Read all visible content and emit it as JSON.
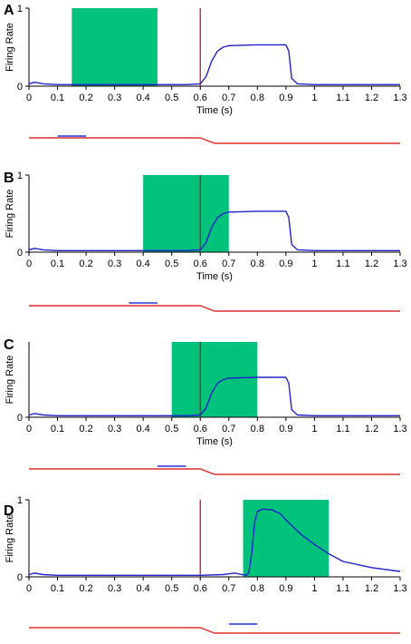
{
  "figure": {
    "colors": {
      "stimulus_window": "#00c27a",
      "response_curve": "#2222cc",
      "event_marker": "#b22222",
      "signal_trace": "#e03030",
      "bar_marker": "#2233dd",
      "axis": "#000000"
    }
  },
  "chart_data": [
    {
      "type": "line",
      "panel": "A",
      "xlabel": "Time (s)",
      "ylabel": "Firing Rate",
      "xlim": [
        0,
        1.3
      ],
      "ylim": [
        0,
        1
      ],
      "xticks": [
        "0",
        "0.1",
        "0.2",
        "0.3",
        "0.4",
        "0.5",
        "0.6",
        "0.7",
        "0.8",
        "0.9",
        "1",
        "1.1",
        "1.2",
        "1.3"
      ],
      "yticks": [
        "0",
        "1"
      ],
      "window": [
        0.15,
        0.45
      ],
      "marker_x": 0.6,
      "series": [
        {
          "x": [
            0,
            0.02,
            0.05,
            0.1,
            0.3,
            0.55,
            0.6,
            0.62,
            0.64,
            0.66,
            0.68,
            0.7,
            0.8,
            0.9,
            0.91,
            0.92,
            0.94,
            1.0,
            1.3
          ],
          "y": [
            0.03,
            0.05,
            0.03,
            0.02,
            0.02,
            0.02,
            0.03,
            0.12,
            0.32,
            0.45,
            0.5,
            0.52,
            0.53,
            0.53,
            0.45,
            0.1,
            0.03,
            0.02,
            0.02
          ]
        }
      ],
      "trace": {
        "level_before": 1,
        "level_after": 0,
        "drop_start": 0.6,
        "drop_end": 0.65
      },
      "bar": [
        0.1,
        0.2
      ]
    },
    {
      "type": "line",
      "panel": "B",
      "xlabel": "Time (s)",
      "ylabel": "Firing Rate",
      "xlim": [
        0,
        1.3
      ],
      "ylim": [
        0,
        1
      ],
      "xticks": [
        "0",
        "0.1",
        "0.2",
        "0.3",
        "0.4",
        "0.5",
        "0.6",
        "0.7",
        "0.8",
        "0.9",
        "1",
        "1.1",
        "1.2",
        "1.3"
      ],
      "yticks": [
        "0",
        "1"
      ],
      "window": [
        0.4,
        0.7
      ],
      "marker_x": 0.6,
      "series": [
        {
          "x": [
            0,
            0.02,
            0.05,
            0.1,
            0.3,
            0.55,
            0.6,
            0.62,
            0.64,
            0.66,
            0.68,
            0.7,
            0.8,
            0.9,
            0.91,
            0.92,
            0.94,
            1.0,
            1.3
          ],
          "y": [
            0.03,
            0.05,
            0.03,
            0.02,
            0.02,
            0.02,
            0.03,
            0.12,
            0.32,
            0.45,
            0.5,
            0.52,
            0.53,
            0.53,
            0.45,
            0.1,
            0.03,
            0.02,
            0.02
          ]
        }
      ],
      "trace": {
        "level_before": 1,
        "level_after": 0,
        "drop_start": 0.6,
        "drop_end": 0.65
      },
      "bar": [
        0.35,
        0.45
      ]
    },
    {
      "type": "line",
      "panel": "C",
      "xlabel": "Time (s)",
      "ylabel": "Firing Rate",
      "xlim": [
        0,
        1.3
      ],
      "ylim": [
        0,
        1
      ],
      "xticks": [
        "0",
        "0.1",
        "0.2",
        "0.3",
        "0.4",
        "0.5",
        "0.6",
        "0.7",
        "0.8",
        "0.9",
        "1",
        "1.1",
        "1.2",
        "1.3"
      ],
      "yticks": [
        "0"
      ],
      "window": [
        0.5,
        0.8
      ],
      "marker_x": 0.6,
      "series": [
        {
          "x": [
            0,
            0.02,
            0.05,
            0.1,
            0.3,
            0.55,
            0.6,
            0.62,
            0.64,
            0.66,
            0.68,
            0.7,
            0.8,
            0.9,
            0.91,
            0.92,
            0.94,
            1.0,
            1.3
          ],
          "y": [
            0.03,
            0.05,
            0.03,
            0.02,
            0.02,
            0.02,
            0.03,
            0.12,
            0.32,
            0.45,
            0.5,
            0.52,
            0.53,
            0.53,
            0.45,
            0.1,
            0.03,
            0.02,
            0.02
          ]
        }
      ],
      "trace": {
        "level_before": 1,
        "level_after": 0,
        "drop_start": 0.6,
        "drop_end": 0.65
      },
      "bar": [
        0.45,
        0.55
      ]
    },
    {
      "type": "line",
      "panel": "D",
      "xlabel": "",
      "ylabel": "Firing Rate",
      "xlim": [
        0,
        1.3
      ],
      "ylim": [
        0,
        1
      ],
      "xticks": [
        "0",
        "0.1",
        "0.2",
        "0.3",
        "0.4",
        "0.5",
        "0.6",
        "0.7",
        "0.8",
        "0.9",
        "1",
        "1.1",
        "1.2",
        "1.3"
      ],
      "yticks": [
        "0",
        "1"
      ],
      "window": [
        0.75,
        1.05
      ],
      "marker_x": 0.6,
      "series": [
        {
          "x": [
            0,
            0.02,
            0.05,
            0.1,
            0.3,
            0.6,
            0.68,
            0.72,
            0.76,
            0.77,
            0.78,
            0.79,
            0.8,
            0.82,
            0.85,
            0.88,
            0.9,
            0.95,
            1.0,
            1.05,
            1.1,
            1.2,
            1.3
          ],
          "y": [
            0.03,
            0.05,
            0.03,
            0.02,
            0.02,
            0.02,
            0.03,
            0.05,
            0.02,
            0.05,
            0.3,
            0.7,
            0.85,
            0.88,
            0.87,
            0.82,
            0.74,
            0.56,
            0.42,
            0.3,
            0.2,
            0.12,
            0.07
          ]
        }
      ],
      "trace": {
        "level_before": 1,
        "level_after": 0,
        "drop_start": 0.6,
        "drop_end": 0.65
      },
      "bar": [
        0.7,
        0.8
      ]
    }
  ]
}
